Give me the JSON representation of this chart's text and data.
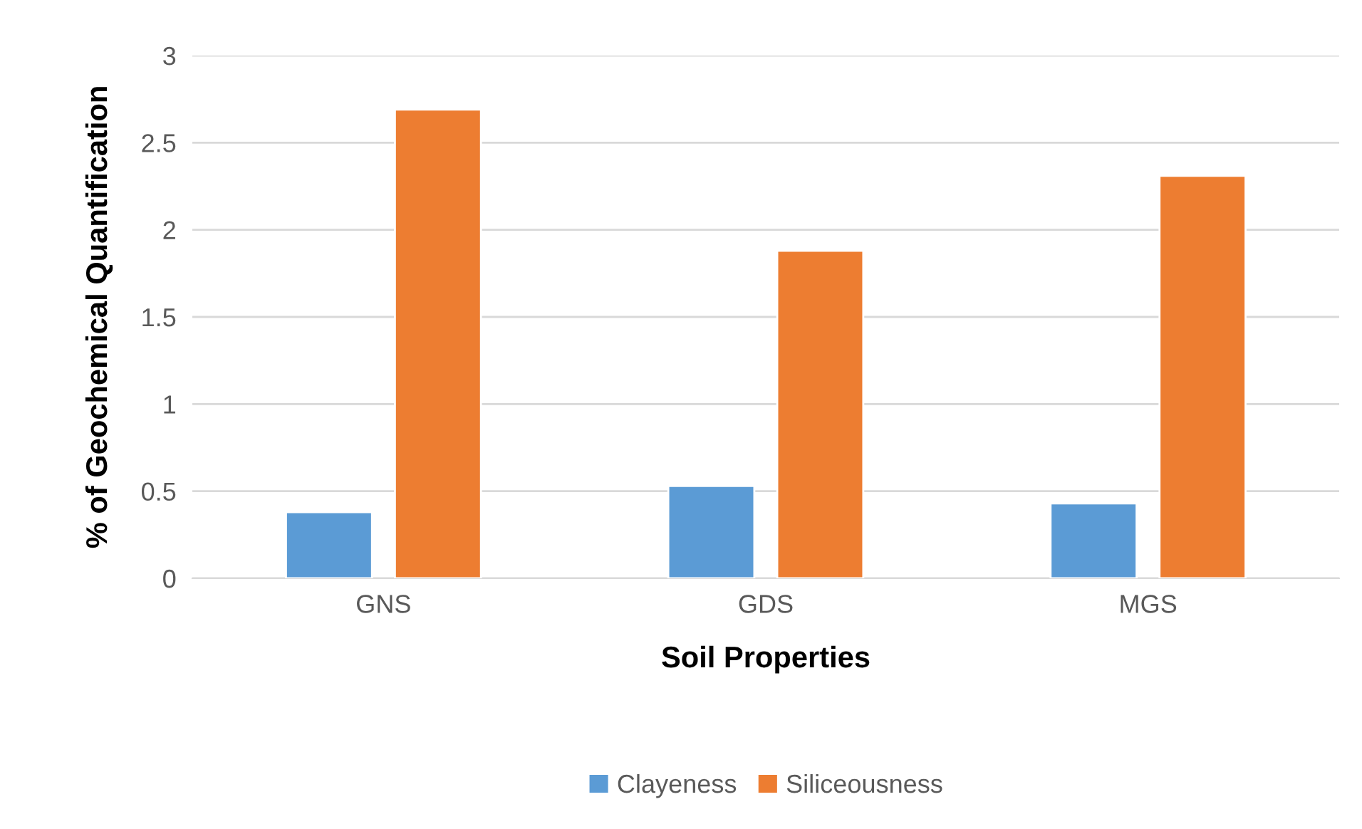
{
  "chart_data": {
    "type": "bar",
    "xlabel": "Soil Properties",
    "ylabel": "% of Geochemical Quantification",
    "categories": [
      "GNS",
      "GDS",
      "MGS"
    ],
    "series": [
      {
        "name": "Clayeness",
        "color": "#5b9bd5",
        "values": [
          0.38,
          0.53,
          0.43
        ]
      },
      {
        "name": "Siliceousness",
        "color": "#ed7d31",
        "values": [
          2.69,
          1.88,
          2.31
        ]
      }
    ],
    "ylim": [
      0,
      3
    ],
    "yticks": [
      0,
      0.5,
      1,
      1.5,
      2,
      2.5,
      3
    ],
    "grid": "y",
    "legend": "bottom"
  }
}
